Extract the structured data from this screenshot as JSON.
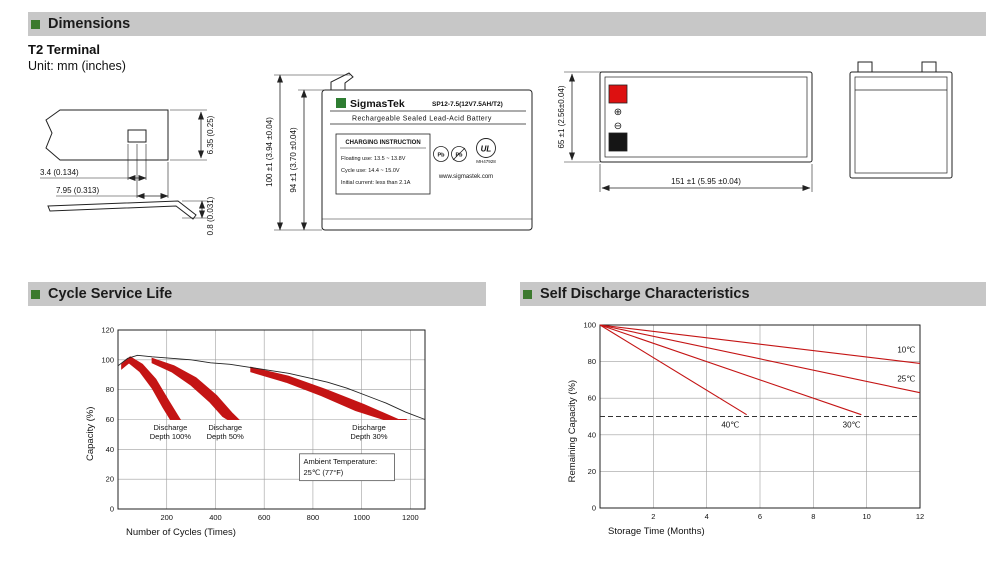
{
  "sections": {
    "dimensions": "Dimensions",
    "cycle_life": "Cycle Service Life",
    "self_discharge": "Self Discharge Characteristics"
  },
  "dims": {
    "terminal_type": "T2 Terminal",
    "unit_note": "Unit: mm (inches)",
    "terminal_detail": {
      "slot_width": "3.4 (0.134)",
      "slot_offset": "7.95 (0.313)",
      "tab_width": "6.35 (0.25)",
      "thickness": "0.8 (0.031)"
    },
    "front_view": {
      "overall_height": "100 ±1 (3.94 ±0.04)",
      "case_height": "94 ±1 (3.70 ±0.04)",
      "brand": "SigmasTek",
      "model": "SP12-7.5(12V7.5AH/T2)",
      "battery_type": "Rechargeable Sealed Lead-Acid Battery",
      "charging_title": "CHARGING INSTRUCTION",
      "charging_line1": "Floating use: 13.5 ~ 13.8V",
      "charging_line2": "Cycle use: 14.4 ~ 15.0V",
      "charging_line3": "Initial current: less than 2.1A",
      "website": "www.sigmastek.com",
      "pb_label": "Pb",
      "ul_label": "UL",
      "ul_number": "MH47928"
    },
    "top_view": {
      "depth": "65 ±1 (2.56±0.04)",
      "length": "151 ±1 (5.95 ±0.04)",
      "plus_symbol": "⊕",
      "minus_symbol": "⊖"
    }
  },
  "chart_data": [
    {
      "id": "cycle",
      "type": "area",
      "title": "Cycle Service Life",
      "xlabel": "Number of Cycles (Times)",
      "ylabel": "Capacity (%)",
      "xlim": [
        0,
        1260
      ],
      "ylim": [
        0,
        120
      ],
      "xticks": [
        200,
        400,
        600,
        800,
        1000,
        1200
      ],
      "yticks": [
        0,
        20,
        40,
        60,
        80,
        100,
        120
      ],
      "grid": true,
      "line_color": "#c41414",
      "envelope": [
        [
          0,
          96
        ],
        [
          40,
          101
        ],
        [
          80,
          103
        ],
        [
          140,
          102
        ],
        [
          220,
          101
        ],
        [
          300,
          100
        ],
        [
          380,
          98
        ],
        [
          460,
          97
        ],
        [
          540,
          95
        ],
        [
          620,
          93
        ],
        [
          700,
          91
        ],
        [
          780,
          88
        ],
        [
          860,
          85
        ],
        [
          940,
          81
        ],
        [
          1020,
          76
        ],
        [
          1100,
          71
        ],
        [
          1180,
          65
        ],
        [
          1260,
          60
        ]
      ],
      "bands": [
        {
          "label_line1": "Discharge",
          "label_line2": "Depth 100%",
          "label_x": 215,
          "label_y": 53,
          "upper": [
            [
              15,
              97
            ],
            [
              50,
              102
            ],
            [
              100,
              97
            ],
            [
              155,
              87
            ],
            [
              210,
              72
            ],
            [
              255,
              60
            ]
          ],
          "lower": [
            [
              15,
              94
            ],
            [
              45,
              98
            ],
            [
              90,
              92
            ],
            [
              140,
              81
            ],
            [
              185,
              68
            ],
            [
              215,
              60
            ]
          ]
        },
        {
          "label_line1": "Discharge",
          "label_line2": "Depth 50%",
          "label_x": 440,
          "label_y": 53,
          "upper": [
            [
              140,
              101
            ],
            [
              230,
              96
            ],
            [
              320,
              88
            ],
            [
              405,
              76
            ],
            [
              470,
              64
            ],
            [
              495,
              60
            ]
          ],
          "lower": [
            [
              140,
              98
            ],
            [
              220,
              92
            ],
            [
              300,
              83
            ],
            [
              375,
              72
            ],
            [
              430,
              62
            ],
            [
              450,
              60
            ]
          ]
        },
        {
          "label_line1": "Discharge",
          "label_line2": "Depth 30%",
          "label_x": 1030,
          "label_y": 53,
          "upper": [
            [
              545,
              95
            ],
            [
              700,
              89
            ],
            [
              855,
              80
            ],
            [
              1010,
              70
            ],
            [
              1150,
              60
            ],
            [
              1185,
              60
            ]
          ],
          "lower": [
            [
              545,
              92
            ],
            [
              690,
              85
            ],
            [
              835,
              76
            ],
            [
              975,
              66
            ],
            [
              1090,
              60
            ]
          ]
        }
      ],
      "annotation": {
        "line1": "Ambient Temperature:",
        "line2": "25℃ (77°F)",
        "x1": 745,
        "y1": 19,
        "x2": 1135,
        "y2": 37
      }
    },
    {
      "id": "discharge",
      "type": "line",
      "title": "Self Discharge Characteristics",
      "xlabel": "Storage Time (Months)",
      "ylabel": "Remaining Capacity (%)",
      "xlim": [
        0,
        12
      ],
      "ylim": [
        0,
        100
      ],
      "xticks": [
        2,
        4,
        6,
        8,
        10,
        12
      ],
      "yticks": [
        0,
        20,
        40,
        60,
        80,
        100
      ],
      "grid": true,
      "line_color": "#c41414",
      "dashed_line_y": 50,
      "series": [
        {
          "name": "10℃",
          "points": [
            [
              0,
              100
            ],
            [
              12,
              79
            ]
          ],
          "label_x": 11.15,
          "label_y": 85
        },
        {
          "name": "25℃",
          "points": [
            [
              0,
              100
            ],
            [
              12,
              63
            ]
          ],
          "label_x": 11.15,
          "label_y": 69
        },
        {
          "name": "30℃",
          "points": [
            [
              0,
              100
            ],
            [
              9.8,
              51
            ]
          ],
          "label_x": 9.1,
          "label_y": 44
        },
        {
          "name": "40℃",
          "points": [
            [
              0,
              100
            ],
            [
              5.5,
              51
            ]
          ],
          "label_x": 4.55,
          "label_y": 44
        }
      ]
    }
  ]
}
